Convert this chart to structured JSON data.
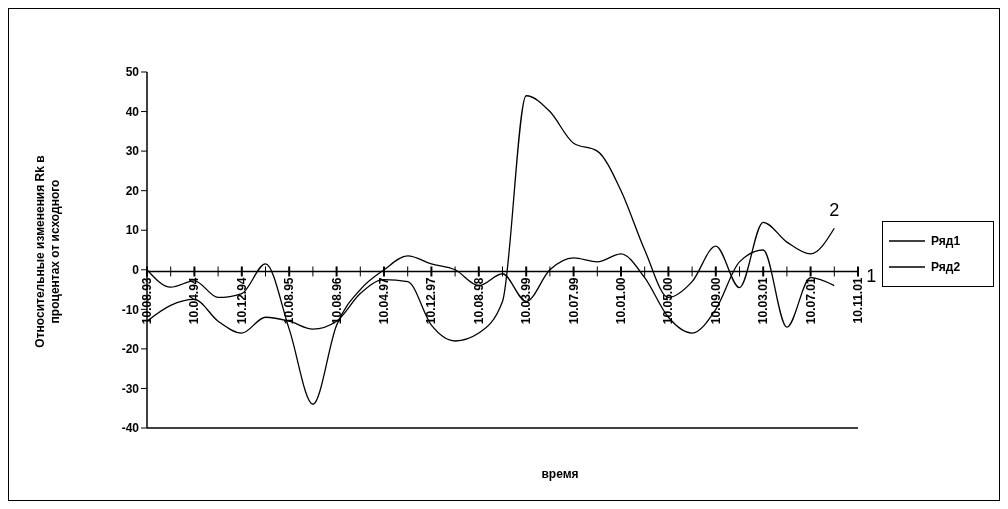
{
  "chart_data": {
    "type": "line",
    "xlabel": "время",
    "ylabel": "Относительные изменения Rk в процентах от исходного",
    "categories": [
      "10.08.93",
      null,
      "10.04.94",
      null,
      "10.12.94",
      null,
      "10.08.95",
      null,
      "10.08.96",
      null,
      "10.04.97",
      null,
      "10.12.97",
      null,
      "10.08.98",
      null,
      "10.03.99",
      null,
      "10.07.99",
      null,
      "10.01.00",
      null,
      "10.05.00",
      null,
      "10.09.00",
      null,
      "10.03.01",
      null,
      "10.07.01",
      null,
      "10.11.01"
    ],
    "series": [
      {
        "name": "Ряд1",
        "color": "#000000",
        "values": [
          0,
          -4.4,
          -2.8,
          -7,
          -6,
          1.5,
          -15,
          -34,
          -14,
          -5,
          0,
          3.5,
          1.5,
          0,
          -4,
          -1,
          -8,
          0,
          3,
          2,
          4,
          -2,
          -12,
          -16,
          -10,
          2,
          5,
          -14.5,
          -2,
          -4,
          null
        ]
      },
      {
        "name": "Ряд2",
        "color": "#000000",
        "values": [
          -13,
          -9,
          -7.5,
          -13,
          -16,
          -12,
          -13,
          -15,
          -13,
          -6,
          -2.5,
          -3,
          -14,
          -18,
          -16,
          -8,
          44,
          40,
          32,
          30,
          20,
          5,
          -7,
          -3,
          6,
          -4.5,
          12,
          7,
          4,
          10.5,
          null
        ]
      }
    ],
    "annotations": [
      "1",
      "2"
    ],
    "ylim": [
      -40,
      50
    ],
    "yticks": [
      -40,
      -30,
      -20,
      -10,
      0,
      10,
      20,
      30,
      40,
      50
    ],
    "legend": "right",
    "marker": "none",
    "line_style": "solid"
  }
}
